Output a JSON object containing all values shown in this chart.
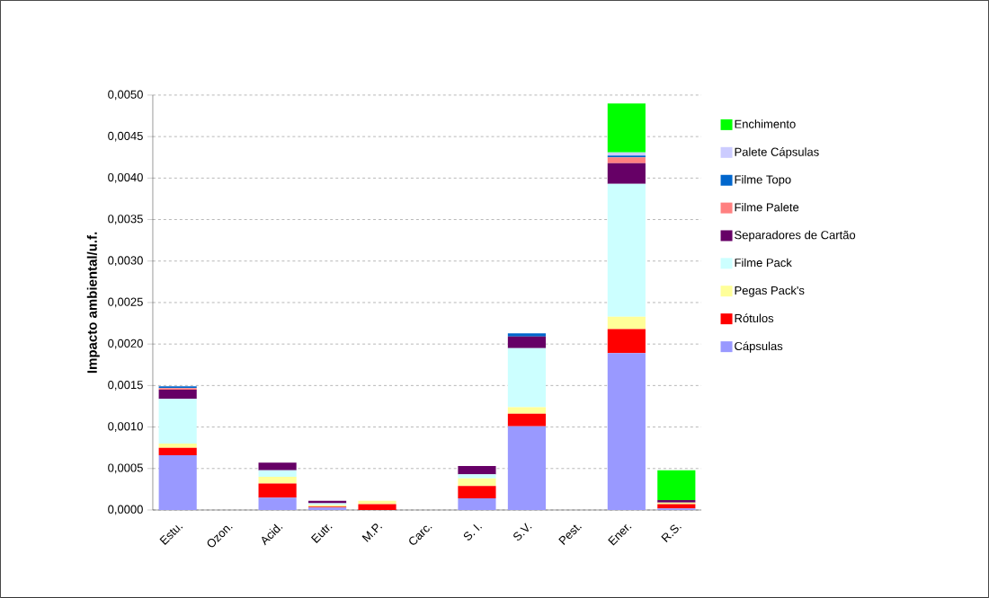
{
  "chart_data": {
    "type": "bar",
    "stacked": true,
    "ylabel": "Impacto ambiental/u.f.",
    "categories": [
      "Estu.",
      "Ozon.",
      "Acid.",
      "Eutr.",
      "M.P.",
      "Carc.",
      "S. I.",
      "S.V.",
      "Pest.",
      "Ener.",
      "R.S."
    ],
    "ylim": [
      0,
      0.005
    ],
    "yticks": [
      {
        "value": 0,
        "label": "0,0000"
      },
      {
        "value": 0.0005,
        "label": "0,0005"
      },
      {
        "value": 0.001,
        "label": "0,0010"
      },
      {
        "value": 0.0015,
        "label": "0,0015"
      },
      {
        "value": 0.002,
        "label": "0,0020"
      },
      {
        "value": 0.0025,
        "label": "0,0025"
      },
      {
        "value": 0.003,
        "label": "0,0030"
      },
      {
        "value": 0.0035,
        "label": "0,0035"
      },
      {
        "value": 0.004,
        "label": "0,0040"
      },
      {
        "value": 0.0045,
        "label": "0,0045"
      },
      {
        "value": 0.005,
        "label": "0,0050"
      }
    ],
    "grid": "y",
    "legend": "right",
    "series": [
      {
        "name": "Cápsulas",
        "color": "#9999ff",
        "values": [
          0.00066,
          0,
          0.00015,
          3e-05,
          0,
          0,
          0.00014,
          0.00101,
          0,
          0.00189,
          2e-05
        ]
      },
      {
        "name": "Rótulos",
        "color": "#ff0000",
        "values": [
          9e-05,
          0,
          0.00017,
          1e-05,
          7e-05,
          0,
          0.00015,
          0.00015,
          0,
          0.00029,
          5e-05
        ]
      },
      {
        "name": "Pegas Pack's",
        "color": "#ffff99",
        "values": [
          5e-05,
          0,
          8e-05,
          2e-05,
          4e-05,
          0,
          9e-05,
          8e-05,
          0,
          0.00015,
          2e-05
        ]
      },
      {
        "name": "Filme Pack",
        "color": "#ccffff",
        "values": [
          0.00054,
          0,
          8e-05,
          2e-05,
          0,
          0,
          5e-05,
          0.00071,
          0,
          0.0016,
          0
        ]
      },
      {
        "name": "Separadores de Cartão",
        "color": "#660066",
        "values": [
          0.00011,
          0,
          9e-05,
          3e-05,
          0,
          0,
          0.0001,
          0.00014,
          0,
          0.00025,
          3e-05
        ]
      },
      {
        "name": "Filme Palete",
        "color": "#ff8080",
        "values": [
          2e-05,
          0,
          0,
          0,
          0,
          0,
          0,
          0,
          0,
          7e-05,
          0
        ]
      },
      {
        "name": "Filme Topo",
        "color": "#0066cc",
        "values": [
          2e-05,
          0,
          0,
          0,
          0,
          0,
          0,
          4e-05,
          0,
          2e-05,
          0
        ]
      },
      {
        "name": "Palete Cápsulas",
        "color": "#ccccff",
        "values": [
          0,
          0,
          0,
          0,
          0,
          0,
          0,
          0,
          0,
          4e-05,
          0
        ]
      },
      {
        "name": "Enchimento",
        "color": "#00ff00",
        "values": [
          0,
          0,
          0,
          0,
          0,
          0,
          0,
          0,
          0,
          0.00059,
          0.00036
        ]
      }
    ]
  }
}
